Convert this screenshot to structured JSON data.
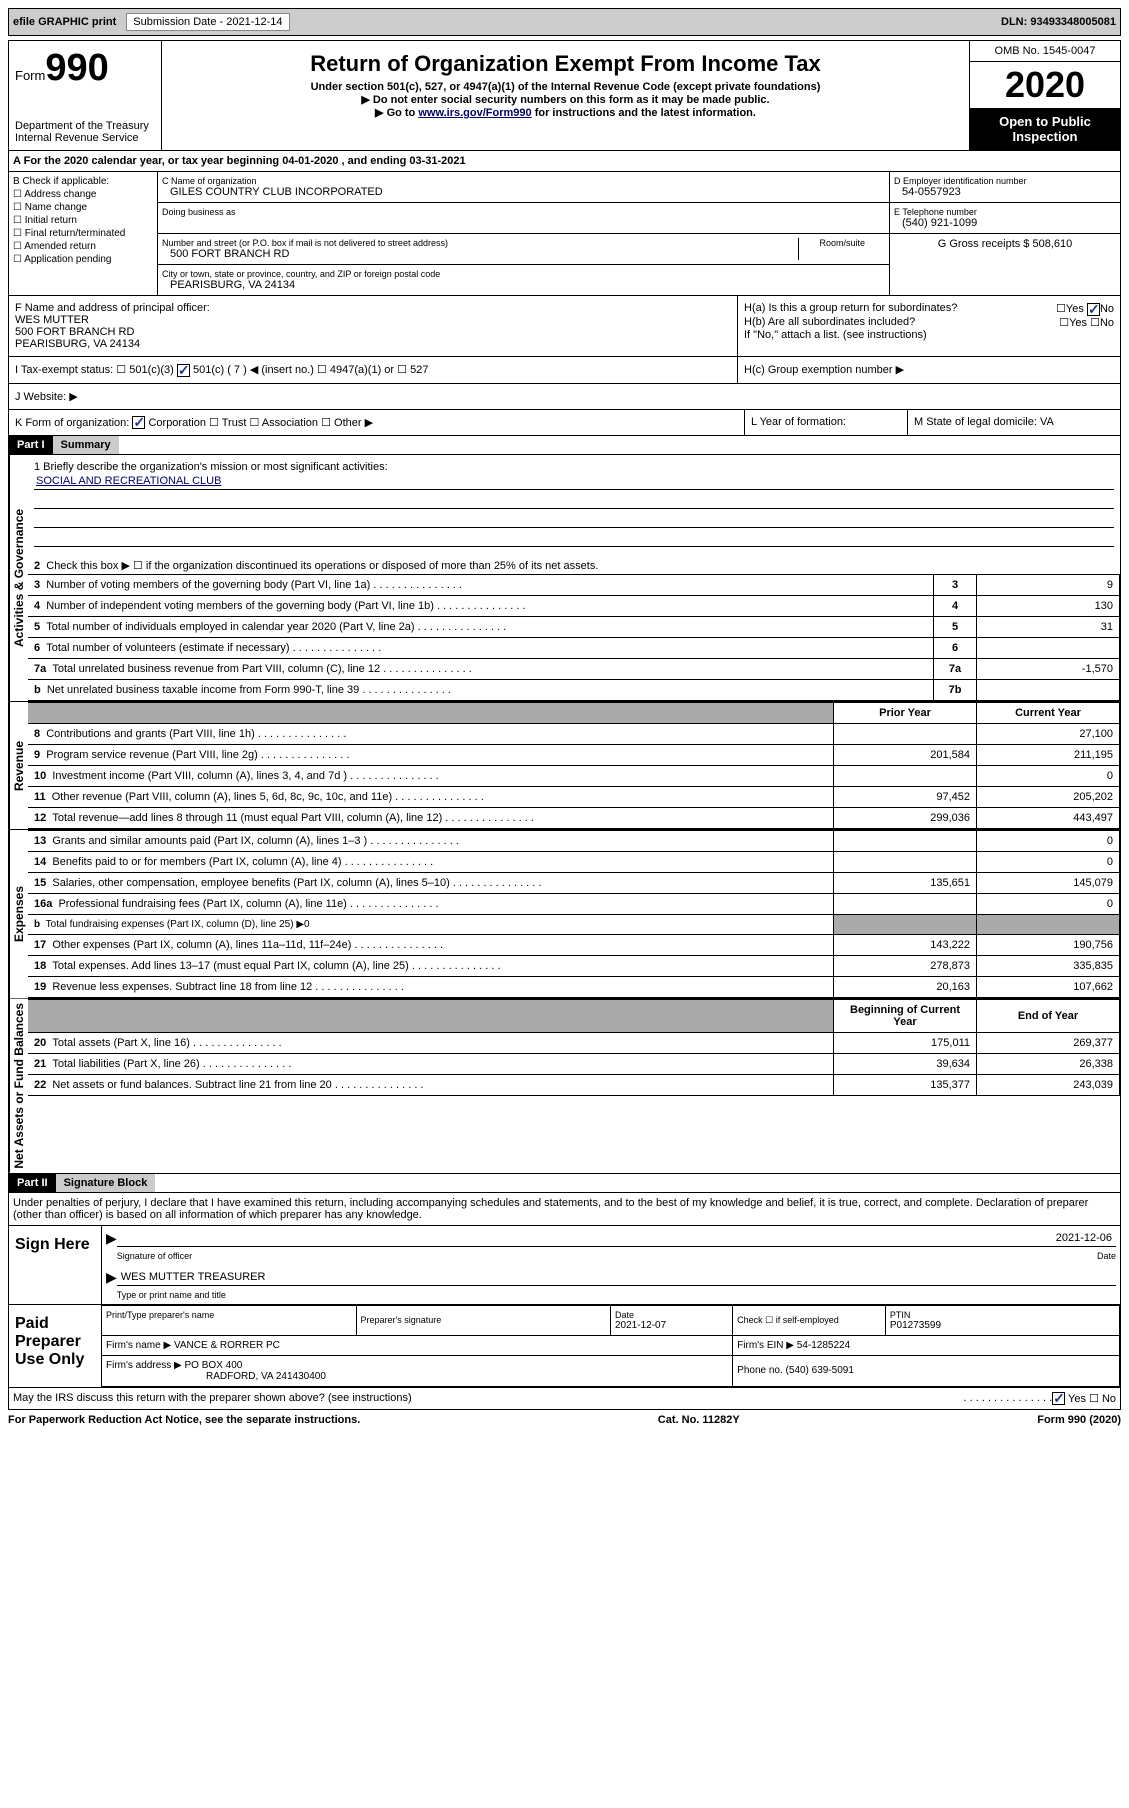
{
  "header": {
    "efile": "efile GRAPHIC print",
    "submission_label": "Submission Date - 2021-12-14",
    "dln": "DLN: 93493348005081"
  },
  "form": {
    "form_label": "Form",
    "form_number": "990",
    "dept": "Department of the Treasury",
    "service": "Internal Revenue Service",
    "title": "Return of Organization Exempt From Income Tax",
    "subtitle": "Under section 501(c), 527, or 4947(a)(1) of the Internal Revenue Code (except private foundations)",
    "note1": "▶ Do not enter social security numbers on this form as it may be made public.",
    "note2_pre": "▶ Go to ",
    "note2_link": "www.irs.gov/Form990",
    "note2_post": " for instructions and the latest information.",
    "omb": "OMB No. 1545-0047",
    "year": "2020",
    "inspection": "Open to Public Inspection"
  },
  "period": {
    "text": "For the 2020 calendar year, or tax year beginning 04-01-2020   , and ending 03-31-2021",
    "prefix": "A"
  },
  "checkB": {
    "label": "B Check if applicable:",
    "items": [
      "Address change",
      "Name change",
      "Initial return",
      "Final return/terminated",
      "Amended return",
      "Application pending"
    ]
  },
  "org": {
    "c_label": "C Name of organization",
    "name": "GILES COUNTRY CLUB INCORPORATED",
    "dba_label": "Doing business as",
    "addr_label": "Number and street (or P.O. box if mail is not delivered to street address)",
    "room_label": "Room/suite",
    "addr": "500 FORT BRANCH RD",
    "city_label": "City or town, state or province, country, and ZIP or foreign postal code",
    "city": "PEARISBURG, VA  24134"
  },
  "colD": {
    "d_label": "D Employer identification number",
    "ein": "54-0557923",
    "e_label": "E Telephone number",
    "phone": "(540) 921-1099",
    "g_label": "G Gross receipts $ 508,610"
  },
  "officer": {
    "f_label": "F Name and address of principal officer:",
    "name": "WES MUTTER",
    "addr1": "500 FORT BRANCH RD",
    "addr2": "PEARISBURG, VA  24134"
  },
  "groupH": {
    "ha": "H(a)  Is this a group return for subordinates?",
    "hb": "H(b)  Are all subordinates included?",
    "hb_note": "If \"No,\" attach a list. (see instructions)",
    "hc": "H(c)  Group exemption number ▶",
    "yes": "Yes",
    "no": "No"
  },
  "exempt": {
    "i_label": "I   Tax-exempt status:",
    "opt1": "501(c)(3)",
    "opt2": "501(c) ( 7 ) ◀ (insert no.)",
    "opt3": "4947(a)(1) or",
    "opt4": "527"
  },
  "website": {
    "j_label": "J    Website: ▶"
  },
  "rowK": {
    "k_label": "K Form of organization:",
    "opts": [
      "Corporation",
      "Trust",
      "Association",
      "Other ▶"
    ],
    "l_label": "L Year of formation:",
    "m_label": "M State of legal domicile: VA"
  },
  "part1": {
    "part": "Part I",
    "title": "Summary",
    "q1": "1   Briefly describe the organization's mission or most significant activities:",
    "mission": "SOCIAL AND RECREATIONAL CLUB",
    "q2": "Check this box ▶ ☐  if the organization discontinued its operations or disposed of more than 25% of its net assets.",
    "sides": {
      "gov": "Activities & Governance",
      "rev": "Revenue",
      "exp": "Expenses",
      "net": "Net Assets or Fund Balances"
    },
    "lines": [
      {
        "n": "3",
        "label": "Number of voting members of the governing body (Part VI, line 1a)",
        "c": "3",
        "v": "9"
      },
      {
        "n": "4",
        "label": "Number of independent voting members of the governing body (Part VI, line 1b)",
        "c": "4",
        "v": "130"
      },
      {
        "n": "5",
        "label": "Total number of individuals employed in calendar year 2020 (Part V, line 2a)",
        "c": "5",
        "v": "31"
      },
      {
        "n": "6",
        "label": "Total number of volunteers (estimate if necessary)",
        "c": "6",
        "v": ""
      },
      {
        "n": "7a",
        "label": "Total unrelated business revenue from Part VIII, column (C), line 12",
        "c": "7a",
        "v": "-1,570"
      },
      {
        "n": "b",
        "label": "Net unrelated business taxable income from Form 990-T, line 39",
        "c": "7b",
        "v": ""
      }
    ],
    "headers": {
      "prior": "Prior Year",
      "current": "Current Year"
    },
    "revenue": [
      {
        "n": "8",
        "label": "Contributions and grants (Part VIII, line 1h)",
        "p": "",
        "c": "27,100"
      },
      {
        "n": "9",
        "label": "Program service revenue (Part VIII, line 2g)",
        "p": "201,584",
        "c": "211,195"
      },
      {
        "n": "10",
        "label": "Investment income (Part VIII, column (A), lines 3, 4, and 7d )",
        "p": "",
        "c": "0"
      },
      {
        "n": "11",
        "label": "Other revenue (Part VIII, column (A), lines 5, 6d, 8c, 9c, 10c, and 11e)",
        "p": "97,452",
        "c": "205,202"
      },
      {
        "n": "12",
        "label": "Total revenue—add lines 8 through 11 (must equal Part VIII, column (A), line 12)",
        "p": "299,036",
        "c": "443,497"
      }
    ],
    "expenses": [
      {
        "n": "13",
        "label": "Grants and similar amounts paid (Part IX, column (A), lines 1–3 )",
        "p": "",
        "c": "0"
      },
      {
        "n": "14",
        "label": "Benefits paid to or for members (Part IX, column (A), line 4)",
        "p": "",
        "c": "0"
      },
      {
        "n": "15",
        "label": "Salaries, other compensation, employee benefits (Part IX, column (A), lines 5–10)",
        "p": "135,651",
        "c": "145,079"
      },
      {
        "n": "16a",
        "label": "Professional fundraising fees (Part IX, column (A), line 11e)",
        "p": "",
        "c": "0"
      },
      {
        "n": "b",
        "label": "Total fundraising expenses (Part IX, column (D), line 25) ▶0",
        "shaded": true
      },
      {
        "n": "17",
        "label": "Other expenses (Part IX, column (A), lines 11a–11d, 11f–24e)",
        "p": "143,222",
        "c": "190,756"
      },
      {
        "n": "18",
        "label": "Total expenses. Add lines 13–17 (must equal Part IX, column (A), line 25)",
        "p": "278,873",
        "c": "335,835"
      },
      {
        "n": "19",
        "label": "Revenue less expenses. Subtract line 18 from line 12",
        "p": "20,163",
        "c": "107,662"
      }
    ],
    "headers2": {
      "begin": "Beginning of Current Year",
      "end": "End of Year"
    },
    "net": [
      {
        "n": "20",
        "label": "Total assets (Part X, line 16)",
        "p": "175,011",
        "c": "269,377"
      },
      {
        "n": "21",
        "label": "Total liabilities (Part X, line 26)",
        "p": "39,634",
        "c": "26,338"
      },
      {
        "n": "22",
        "label": "Net assets or fund balances. Subtract line 21 from line 20",
        "p": "135,377",
        "c": "243,039"
      }
    ]
  },
  "part2": {
    "part": "Part II",
    "title": "Signature Block",
    "penalty": "Under penalties of perjury, I declare that I have examined this return, including accompanying schedules and statements, and to the best of my knowledge and belief, it is true, correct, and complete. Declaration of preparer (other than officer) is based on all information of which preparer has any knowledge."
  },
  "sign": {
    "title": "Sign Here",
    "sig_label": "Signature of officer",
    "date_label": "Date",
    "date": "2021-12-06",
    "name": "WES MUTTER  TREASURER",
    "name_label": "Type or print name and title"
  },
  "preparer": {
    "title": "Paid Preparer Use Only",
    "name_label": "Print/Type preparer's name",
    "sig_label": "Preparer's signature",
    "date_label": "Date",
    "date": "2021-12-07",
    "check_label": "Check ☐ if self-employed",
    "ptin_label": "PTIN",
    "ptin": "P01273599",
    "firm_label": "Firm's name    ▶",
    "firm": "VANCE & RORRER PC",
    "ein_label": "Firm's EIN ▶",
    "ein": "54-1285224",
    "addr_label": "Firm's address ▶",
    "addr1": "PO BOX 400",
    "addr2": "RADFORD, VA  241430400",
    "phone_label": "Phone no.",
    "phone": "(540) 639-5091"
  },
  "discuss": {
    "q": "May the IRS discuss this return with the preparer shown above? (see instructions)",
    "yes": "Yes",
    "no": "No"
  },
  "footer": {
    "left": "For Paperwork Reduction Act Notice, see the separate instructions.",
    "center": "Cat. No. 11282Y",
    "right": "Form 990 (2020)"
  }
}
